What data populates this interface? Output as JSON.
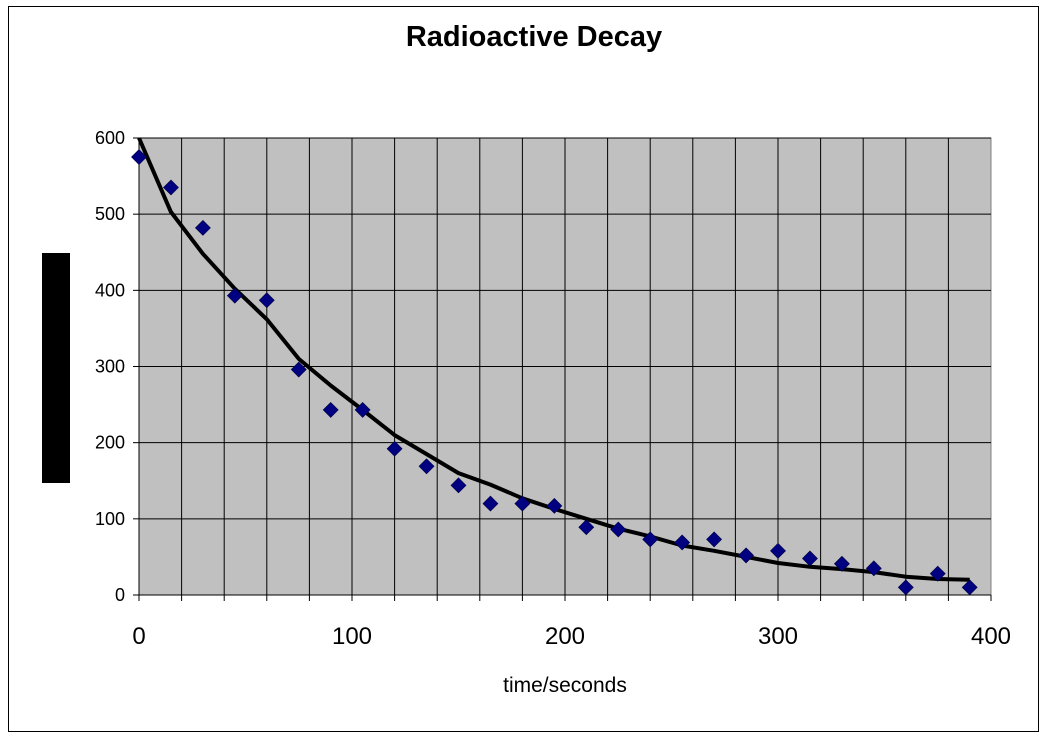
{
  "chart_data": {
    "type": "scatter",
    "title": "Radioactive Decay",
    "xlabel": "time/seconds",
    "ylabel": "",
    "xlim": [
      0,
      400
    ],
    "ylim": [
      0,
      600
    ],
    "x_ticks": [
      "0",
      "100",
      "200",
      "300",
      "400"
    ],
    "y_ticks": [
      "0",
      "100",
      "200",
      "300",
      "400",
      "500",
      "600"
    ],
    "grid": true,
    "legend": "none",
    "plot_background": "#c0c0c0",
    "series": [
      {
        "style": "markers",
        "marker": "diamond",
        "color": "#000080",
        "x": [
          0,
          15,
          30,
          45,
          60,
          75,
          90,
          105,
          120,
          135,
          150,
          165,
          180,
          195,
          210,
          225,
          240,
          255,
          270,
          285,
          300,
          315,
          330,
          345,
          360,
          375,
          390
        ],
        "y": [
          575,
          535,
          482,
          393,
          387,
          296,
          243,
          243,
          192,
          169,
          144,
          120,
          120,
          117,
          89,
          86,
          73,
          69,
          73,
          52,
          58,
          48,
          41,
          35,
          10,
          28,
          10
        ]
      },
      {
        "style": "line",
        "color": "#000000",
        "x": [
          0,
          15,
          30,
          45,
          60,
          75,
          90,
          105,
          120,
          135,
          150,
          165,
          180,
          195,
          210,
          225,
          240,
          255,
          270,
          285,
          300,
          315,
          330,
          345,
          360,
          375,
          390
        ],
        "y": [
          600,
          503,
          448,
          402,
          362,
          310,
          275,
          243,
          210,
          185,
          160,
          145,
          127,
          113,
          100,
          87,
          77,
          65,
          58,
          50,
          42,
          37,
          34,
          30,
          24,
          21,
          20
        ]
      }
    ]
  }
}
